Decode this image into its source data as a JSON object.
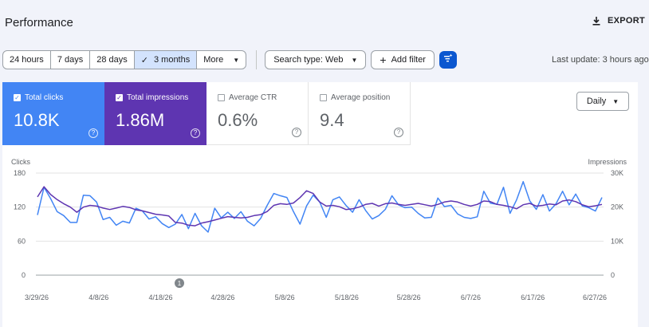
{
  "header": {
    "title": "Performance",
    "export_label": "EXPORT"
  },
  "filters": {
    "ranges": [
      {
        "label": "24 hours",
        "active": false
      },
      {
        "label": "7 days",
        "active": false
      },
      {
        "label": "28 days",
        "active": false
      },
      {
        "label": "3 months",
        "active": true
      },
      {
        "label": "More",
        "active": false
      }
    ],
    "search_type": "Search type: Web",
    "add_filter": "Add filter",
    "last_update": "Last update: 3 hours ago"
  },
  "metrics": {
    "clicks": {
      "label": "Total clicks",
      "value": "10.8K",
      "checked": true
    },
    "impressions": {
      "label": "Total impressions",
      "value": "1.86M",
      "checked": true
    },
    "ctr": {
      "label": "Average CTR",
      "value": "0.6%",
      "checked": false
    },
    "position": {
      "label": "Average position",
      "value": "9.4",
      "checked": false
    }
  },
  "granularity": "Daily",
  "chart_data": {
    "type": "line",
    "left_axis": {
      "label": "Clicks",
      "ticks": [
        "0",
        "60",
        "120",
        "180"
      ],
      "min": 0,
      "max": 180
    },
    "right_axis": {
      "label": "Impressions",
      "ticks": [
        "0",
        "10K",
        "20K",
        "30K"
      ],
      "min": 0,
      "max": 30000
    },
    "x_tick_labels": [
      "3/29/26",
      "4/8/26",
      "4/18/26",
      "4/28/26",
      "5/8/26",
      "5/18/26",
      "5/28/26",
      "6/7/26",
      "6/17/26",
      "6/27/26"
    ],
    "annotation": {
      "label": "1",
      "date": "4/22/26"
    },
    "grid": true,
    "colors": {
      "clicks": "#4285f4",
      "impressions": "#5e35b1"
    },
    "series": [
      {
        "axis": "left",
        "values": [
          106,
          155,
          135,
          112,
          105,
          93,
          93,
          141,
          140,
          129,
          98,
          102,
          88,
          95,
          92,
          118,
          113,
          99,
          103,
          91,
          84,
          90,
          107,
          82,
          109,
          87,
          76,
          118,
          101,
          111,
          100,
          112,
          95,
          87,
          100,
          123,
          144,
          140,
          137,
          112,
          90,
          122,
          141,
          129,
          102,
          133,
          138,
          123,
          111,
          133,
          114,
          99,
          105,
          116,
          140,
          124,
          119,
          120,
          109,
          101,
          102,
          136,
          121,
          123,
          108,
          102,
          100,
          103,
          148,
          127,
          125,
          155,
          109,
          133,
          165,
          131,
          116,
          142,
          113,
          126,
          148,
          124,
          143,
          122,
          119,
          113,
          137
        ]
      },
      {
        "axis": "right",
        "values": [
          23000,
          26000,
          23700,
          22200,
          21000,
          20000,
          18500,
          20000,
          20500,
          20300,
          19700,
          19300,
          19700,
          20200,
          19900,
          19200,
          18900,
          18400,
          17900,
          17700,
          17400,
          15500,
          15300,
          14700,
          14500,
          15300,
          15700,
          16200,
          16700,
          17200,
          17000,
          16800,
          17000,
          17500,
          17800,
          18700,
          20500,
          21000,
          20800,
          21200,
          22800,
          24800,
          24000,
          21500,
          20300,
          20500,
          20100,
          19300,
          19500,
          20000,
          20800,
          21100,
          20300,
          21000,
          21200,
          20800,
          20500,
          20800,
          21100,
          20700,
          20300,
          20800,
          21500,
          21800,
          21500,
          20800,
          20300,
          20800,
          21800,
          21600,
          20800,
          20500,
          20100,
          19500,
          20700,
          21100,
          20300,
          20500,
          20900,
          20700,
          21800,
          22100,
          21600,
          20700,
          20100,
          20400,
          20800
        ]
      }
    ]
  }
}
